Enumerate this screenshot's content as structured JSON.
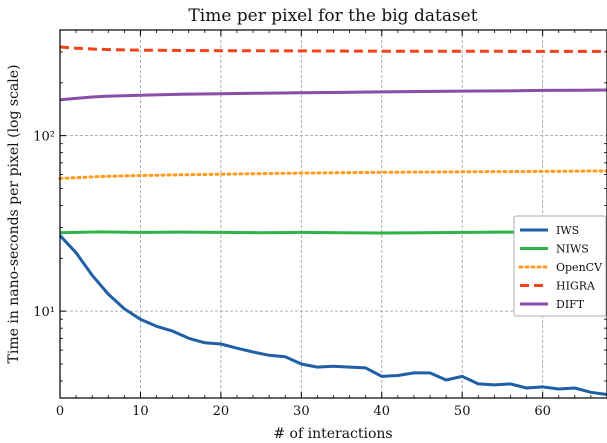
{
  "chart_data": {
    "type": "line",
    "title": "Time per pixel for the big dataset",
    "xlabel": "# of interactions",
    "ylabel": "Time in nano-seconds per pixel (log scale)",
    "x_scale": "linear",
    "y_scale": "log",
    "xlim": [
      0,
      68
    ],
    "ylim": [
      3.2,
      400
    ],
    "x_ticks": [
      0,
      10,
      20,
      30,
      40,
      50,
      60
    ],
    "x_tick_labels": [
      "0",
      "10",
      "20",
      "30",
      "40",
      "50",
      "60"
    ],
    "y_ticks": [
      10,
      100
    ],
    "y_tick_labels": [
      "10¹",
      "10²"
    ],
    "grid": true,
    "legend_position": "right",
    "series": [
      {
        "name": "IWS",
        "color": "#1f5fa6",
        "style": "solid",
        "x": [
          0,
          2,
          4,
          6,
          8,
          10,
          12,
          14,
          16,
          18,
          20,
          22,
          24,
          26,
          28,
          30,
          32,
          34,
          36,
          38,
          40,
          42,
          44,
          46,
          48,
          50,
          52,
          54,
          56,
          58,
          60,
          62,
          64,
          66,
          68
        ],
        "y": [
          27,
          21.5,
          16,
          12.5,
          10.3,
          9.0,
          8.2,
          7.7,
          7.0,
          6.6,
          6.5,
          6.15,
          5.85,
          5.6,
          5.5,
          5.0,
          4.8,
          4.85,
          4.8,
          4.75,
          4.25,
          4.3,
          4.45,
          4.45,
          4.05,
          4.25,
          3.85,
          3.8,
          3.85,
          3.65,
          3.7,
          3.6,
          3.65,
          3.45,
          3.35
        ]
      },
      {
        "name": "NIWS",
        "color": "#2db34a",
        "style": "solid",
        "x": [
          0,
          5,
          10,
          15,
          20,
          25,
          30,
          35,
          40,
          45,
          50,
          55,
          60,
          65,
          68
        ],
        "y": [
          28,
          28.3,
          28.1,
          28.2,
          28.1,
          28.0,
          28.1,
          28.0,
          27.9,
          28.0,
          28.1,
          28.2,
          28.3,
          28.5,
          28.6
        ]
      },
      {
        "name": "OpenCV",
        "color": "#ff9a1a",
        "style": "dotted",
        "x": [
          0,
          5,
          10,
          15,
          20,
          25,
          30,
          35,
          40,
          45,
          50,
          55,
          60,
          65,
          68
        ],
        "y": [
          57,
          58.5,
          59.3,
          59.8,
          60.3,
          60.8,
          61.2,
          61.5,
          61.8,
          62,
          62.2,
          62.4,
          62.6,
          62.8,
          63
        ]
      },
      {
        "name": "HIGRA",
        "color": "#f0431a",
        "style": "dashed",
        "x": [
          0,
          2,
          5,
          10,
          20,
          30,
          40,
          50,
          60,
          68
        ],
        "y": [
          320,
          315,
          310,
          307,
          305,
          304,
          303,
          303,
          302,
          302
        ]
      },
      {
        "name": "DIFT",
        "color": "#8b4ea8",
        "style": "solid",
        "x": [
          0,
          2,
          4,
          6,
          8,
          10,
          15,
          20,
          25,
          30,
          35,
          40,
          45,
          50,
          55,
          60,
          65,
          68
        ],
        "y": [
          160,
          163,
          166,
          168,
          169,
          170,
          172,
          173.5,
          174.5,
          175.5,
          176.5,
          177.5,
          178.5,
          179.5,
          180,
          181,
          181.5,
          182
        ]
      }
    ]
  }
}
